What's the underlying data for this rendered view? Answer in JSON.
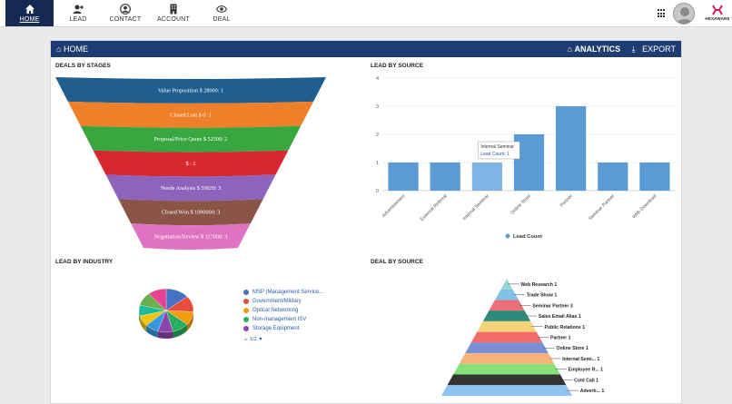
{
  "nav": {
    "items": [
      {
        "label": "HOME",
        "icon": "home-icon"
      },
      {
        "label": "LEAD",
        "icon": "add-user-icon"
      },
      {
        "label": "CONTACT",
        "icon": "user-circle-icon"
      },
      {
        "label": "ACCOUNT",
        "icon": "building-icon"
      },
      {
        "label": "DEAL",
        "icon": "eye-icon"
      }
    ]
  },
  "brand": {
    "logo_text": "HEXAWARE",
    "accent": "#d81b60"
  },
  "header": {
    "home": "HOME",
    "analytics": "ANALYTICS",
    "export": "EXPORT"
  },
  "panels": {
    "stages": "DEALS BY STAGES",
    "lead_source": "LEAD BY SOURCE",
    "industry": "LEAD BY INDUSTRY",
    "deal_source": "DEAL BY SOURCE"
  },
  "chart_data": [
    {
      "type": "funnel",
      "stages": [
        {
          "label": "Value Proposition $ 28000: 1",
          "color": "#1f5e8f"
        },
        {
          "label": "Closed Lost $ 0: 1",
          "color": "#ef7f28"
        },
        {
          "label": "Proposal/Price Quote $ 52500: 2",
          "color": "#38a740"
        },
        {
          "label": "$ : 2",
          "color": "#d7282f"
        },
        {
          "label": "Needs Analysis $ 59020: 3",
          "color": "#8e63bc"
        },
        {
          "label": "Closed Won $ 1090000: 3",
          "color": "#8a5448"
        },
        {
          "label": "Negotiation/Review $ 117000: 3",
          "color": "#e073c1"
        }
      ]
    },
    {
      "type": "bar",
      "categories": [
        "Advertisement",
        "External Referral",
        "Internal Seminar",
        "Online Store",
        "Partner",
        "Seminar Partner",
        "Web Download"
      ],
      "values": [
        1,
        1,
        1,
        2,
        3,
        1,
        1
      ],
      "ylim": [
        0,
        4
      ],
      "yticks": [
        0,
        1,
        2,
        3,
        4
      ],
      "series_name": "Lead Count",
      "color": "#5b9bd5",
      "tooltip": {
        "title": "Internal Seminar",
        "text": "Lead Count: 1",
        "category_index": 2
      }
    },
    {
      "type": "pie",
      "slices": [
        {
          "label": "MSP (Management Service...",
          "value": 14,
          "color": "#4472c4"
        },
        {
          "label": "Government/Military",
          "value": 12,
          "color": "#e74c3c"
        },
        {
          "label": "Optical Networking",
          "value": 10,
          "color": "#f39c12"
        },
        {
          "label": "Non-management ISV",
          "value": 10,
          "color": "#27ae60"
        },
        {
          "label": "Storage Equipment",
          "value": 9,
          "color": "#8e44ad"
        },
        {
          "label": "",
          "value": 8,
          "color": "#3498db"
        },
        {
          "label": "",
          "value": 8,
          "color": "#f1c40f"
        },
        {
          "label": "",
          "value": 8,
          "color": "#1abc9c"
        },
        {
          "label": "",
          "value": 10,
          "color": "#6ab04c"
        },
        {
          "label": "",
          "value": 11,
          "color": "#e84393"
        }
      ],
      "legend_visible": 5,
      "pager": "1/2"
    },
    {
      "type": "pyramid",
      "levels": [
        {
          "label": "Web Research 1",
          "color": "#9ad5d0"
        },
        {
          "label": "Trade Show 1",
          "color": "#7fc4e8"
        },
        {
          "label": "Seminar Partner 3",
          "color": "#f06d7a"
        },
        {
          "label": "Sales Email Alias 1",
          "color": "#2e8b7a"
        },
        {
          "label": "Public Relations 1",
          "color": "#f2d478"
        },
        {
          "label": "Partner 1",
          "color": "#f36a6a"
        },
        {
          "label": "Online Store 1",
          "color": "#7b8fd8"
        },
        {
          "label": "Internal Semi... 1",
          "color": "#f8b27a"
        },
        {
          "label": "Employee R... 1",
          "color": "#88e07a"
        },
        {
          "label": "Cold Call 1",
          "color": "#333333"
        },
        {
          "label": "Adverti... 1",
          "color": "#8fc3f0"
        }
      ]
    }
  ]
}
